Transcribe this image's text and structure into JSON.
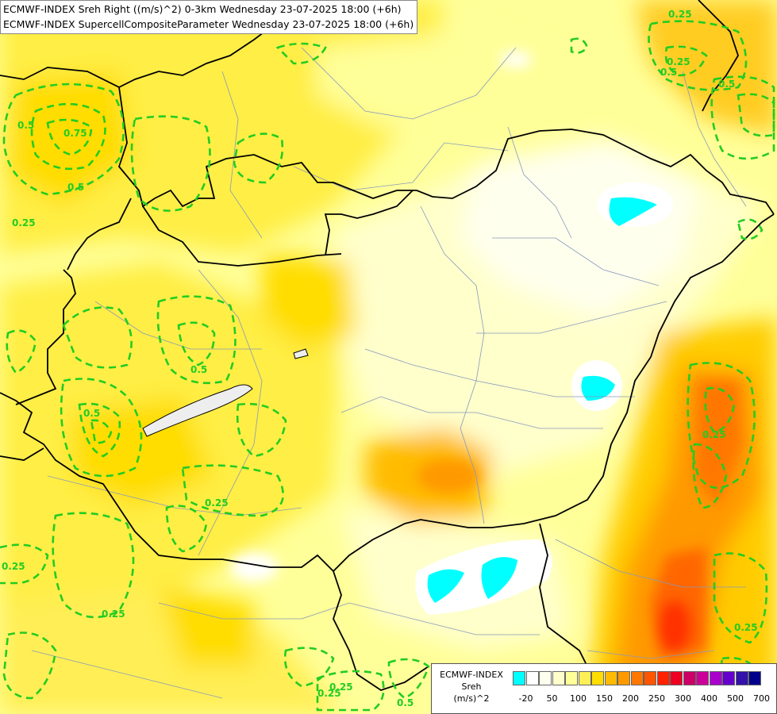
{
  "header": {
    "line1": "ECMWF-INDEX Sreh Right ((m/s)^2) 0-3km Wednesday 23-07-2025 18:00 (+6h)",
    "line2": "ECMWF-INDEX SupercellCompositeParameter Wednesday 23-07-2025 18:00 (+6h)"
  },
  "legend": {
    "title1": "ECMWF-INDEX",
    "title2": "Sreh",
    "unit": "(m/s)^2",
    "colors": [
      "#00ffff",
      "#ffffff",
      "#ffffee",
      "#ffffcc",
      "#ffff99",
      "#ffee55",
      "#ffdd00",
      "#ffbb00",
      "#ff9900",
      "#ff7700",
      "#ff5500",
      "#ff2200",
      "#ee0022",
      "#cc0066",
      "#cc0099",
      "#aa00cc",
      "#6600cc",
      "#3311aa",
      "#000088"
    ],
    "ticks": [
      "-20",
      "50",
      "100",
      "150",
      "200",
      "250",
      "300",
      "400",
      "500",
      "700"
    ]
  },
  "contour_labels": [
    "0.75",
    "0.5",
    "0.5",
    "0.25",
    "0.25",
    "0.5",
    "0.5",
    "0.25",
    "0.25",
    "0.25",
    "0.25",
    "0.25",
    "0.5",
    "0.25",
    "0.25",
    "0.5",
    "0.25",
    "0.5"
  ],
  "colors": {
    "contour": "#22cc22",
    "border": "#000000",
    "river": "#7788aa"
  }
}
